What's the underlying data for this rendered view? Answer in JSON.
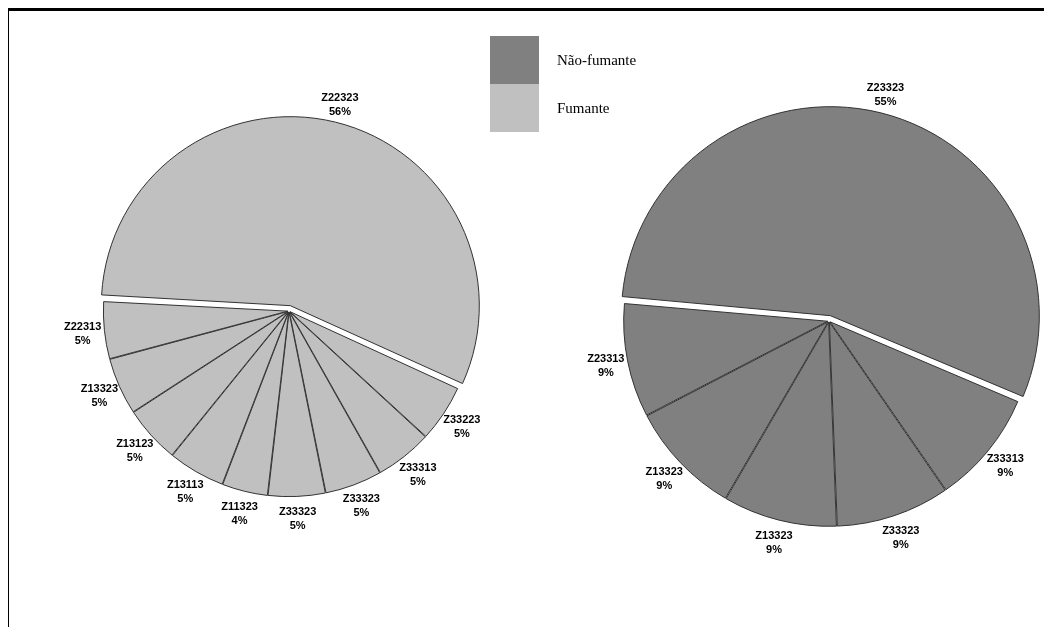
{
  "chart_data": [
    {
      "type": "pie",
      "categories": [
        "Z22323",
        "Z33223",
        "Z33313",
        "Z33323",
        "Z33323",
        "Z11323",
        "Z13113",
        "Z13123",
        "Z13323",
        "Z22313"
      ],
      "legend": "top right",
      "series": [
        {
          "name": "Fumante",
          "color": "#c0c0c0",
          "values": [
            56,
            5,
            5,
            5,
            5,
            4,
            5,
            5,
            5,
            5
          ],
          "value_labels": [
            "56%",
            "5%",
            "5%",
            "5%",
            "5%",
            "4%",
            "5%",
            "5%",
            "5%",
            "5%"
          ]
        }
      ]
    },
    {
      "type": "pie",
      "categories": [
        "Z23323",
        "Z33313",
        "Z33323",
        "Z13323",
        "Z13323",
        "Z23313"
      ],
      "legend": "top left",
      "series": [
        {
          "name": "Não-fumante",
          "color": "#808080",
          "values": [
            55,
            9,
            9,
            9,
            9,
            9
          ],
          "value_labels": [
            "55%",
            "9%",
            "9%",
            "9%",
            "9%",
            "9%"
          ]
        }
      ]
    }
  ]
}
